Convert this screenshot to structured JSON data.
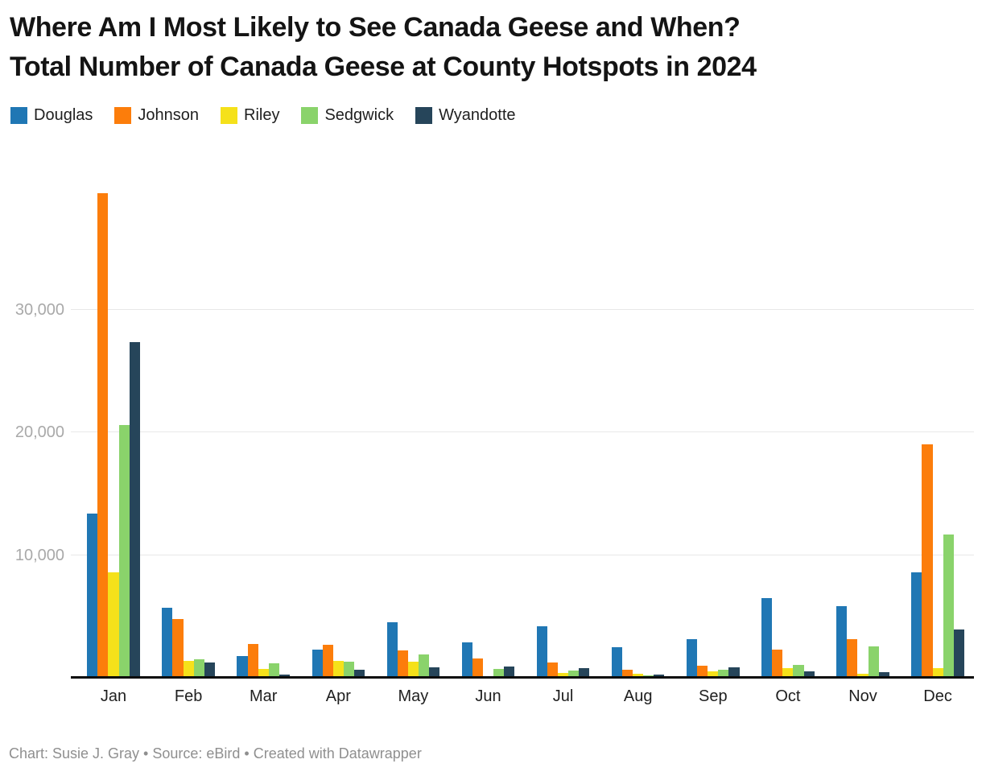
{
  "title": {
    "line1": "Where Am I Most Likely to See Canada Geese and When?",
    "line2": "Total Number of Canada Geese at County Hotspots in 2024"
  },
  "footer": {
    "text": "Chart: Susie J. Gray • Source: eBird • Created with Datawrapper"
  },
  "colors": {
    "background": "#ffffff",
    "grid": "#e8e8e8",
    "baseline": "#0b0b0b",
    "tick_label": "#a9a9a9",
    "month_label": "#1f1f1f"
  },
  "chart_data": {
    "type": "bar",
    "title": "Where Am I Most Likely to See Canada Geese and When? Total Number of Canada Geese at County Hotspots in 2024",
    "categories": [
      "Jan",
      "Feb",
      "Mar",
      "Apr",
      "May",
      "Jun",
      "Jul",
      "Aug",
      "Sep",
      "Oct",
      "Nov",
      "Dec"
    ],
    "series": [
      {
        "name": "Douglas",
        "color": "#2077b4",
        "values": [
          13400,
          5700,
          1800,
          2280,
          4550,
          2900,
          4200,
          2500,
          3130,
          6480,
          5850,
          8600
        ]
      },
      {
        "name": "Johnson",
        "color": "#fc7d0b",
        "values": [
          39500,
          4800,
          2760,
          2700,
          2250,
          1550,
          1270,
          680,
          1000,
          2320,
          3150,
          19050
        ]
      },
      {
        "name": "Riley",
        "color": "#f5e11a",
        "values": [
          8600,
          1400,
          750,
          1400,
          1330,
          0,
          390,
          350,
          500,
          790,
          350,
          800
        ]
      },
      {
        "name": "Sedgwick",
        "color": "#8ad36b",
        "values": [
          20600,
          1500,
          1150,
          1310,
          1920,
          750,
          590,
          180,
          660,
          1070,
          2580,
          11690
        ]
      },
      {
        "name": "Wyandotte",
        "color": "#26455a",
        "values": [
          27350,
          1230,
          280,
          680,
          850,
          900,
          790,
          260,
          870,
          550,
          460,
          3940
        ]
      }
    ],
    "xlabel": "",
    "ylabel": "",
    "ylim": [
      0,
      40000
    ],
    "yticks": [
      10000,
      20000,
      30000
    ],
    "ytick_labels": [
      "10,000",
      "20,000",
      "30,000"
    ],
    "grid": true,
    "legend_position": "top"
  }
}
